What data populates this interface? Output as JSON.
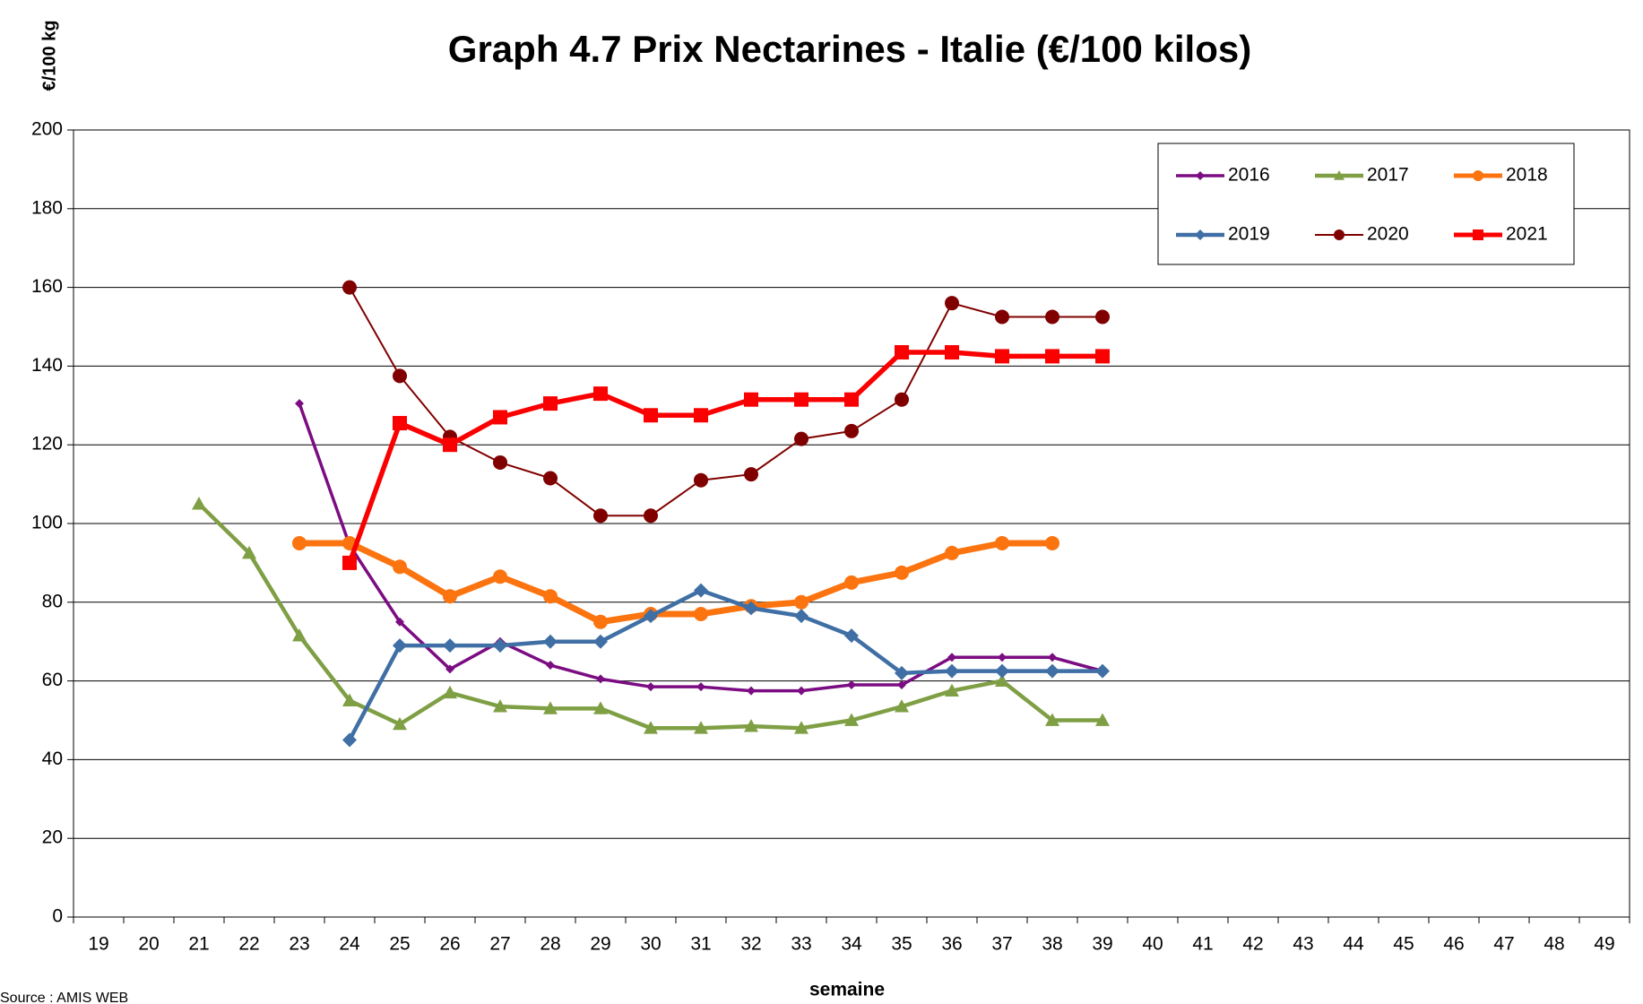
{
  "chart_data": {
    "type": "line",
    "title": "Graph 4.7 Prix Nectarines - Italie (€/100 kilos)",
    "ylabel": "€/100 kg",
    "xlabel": "semaine",
    "source": "Source : AMIS WEB",
    "categories": [
      "19",
      "20",
      "21",
      "22",
      "23",
      "24",
      "25",
      "26",
      "27",
      "28",
      "29",
      "30",
      "31",
      "32",
      "33",
      "34",
      "35",
      "36",
      "37",
      "38",
      "39",
      "40",
      "41",
      "42",
      "43",
      "44",
      "45",
      "46",
      "47",
      "48",
      "49"
    ],
    "ylim": [
      0,
      200
    ],
    "yticks": [
      0,
      20,
      40,
      60,
      80,
      100,
      120,
      140,
      160,
      180,
      200
    ],
    "grid": true,
    "legend": "upper right",
    "series": [
      {
        "name": "2016",
        "color": "#7b0c82",
        "marker": "diamond",
        "width": 3.5,
        "size": 5,
        "values": [
          null,
          null,
          null,
          null,
          130.5,
          94.5,
          75,
          63,
          70,
          64,
          60.5,
          58.5,
          58.5,
          57.5,
          57.5,
          59,
          59,
          66,
          66,
          66,
          62.5,
          null,
          null,
          null,
          null,
          null,
          null,
          null,
          null,
          null,
          null
        ]
      },
      {
        "name": "2017",
        "color": "#7f9f45",
        "marker": "triangle",
        "width": 4.5,
        "size": 8,
        "values": [
          null,
          null,
          105,
          92.5,
          71.5,
          55,
          49,
          57,
          53.5,
          53,
          53,
          48,
          48,
          48.5,
          48,
          50,
          53.5,
          57.5,
          60,
          50,
          50,
          null,
          null,
          null,
          null,
          null,
          null,
          null,
          null,
          null,
          null
        ]
      },
      {
        "name": "2018",
        "color": "#fb7410",
        "marker": "circle",
        "width": 7,
        "size": 8,
        "values": [
          null,
          null,
          null,
          null,
          95,
          95,
          89,
          81.5,
          86.5,
          81.5,
          75,
          77,
          77,
          79,
          80,
          85,
          87.5,
          92.5,
          95,
          95,
          null,
          null,
          null,
          null,
          null,
          null,
          null,
          null,
          null,
          null,
          null
        ]
      },
      {
        "name": "2019",
        "color": "#3f6fa4",
        "marker": "diamond",
        "width": 4.5,
        "size": 8,
        "values": [
          null,
          null,
          null,
          null,
          null,
          45,
          69,
          69,
          69,
          70,
          70,
          76.5,
          83,
          78.5,
          76.5,
          71.5,
          62,
          62.5,
          62.5,
          62.5,
          62.5,
          null,
          null,
          null,
          null,
          null,
          null,
          null,
          null,
          null,
          null
        ]
      },
      {
        "name": "2020",
        "color": "#800000",
        "marker": "circle",
        "width": 2,
        "size": 8,
        "values": [
          null,
          null,
          null,
          null,
          null,
          160,
          137.5,
          122,
          115.5,
          111.5,
          102,
          102,
          111,
          112.5,
          121.5,
          123.5,
          131.5,
          156,
          152.5,
          152.5,
          152.5,
          null,
          null,
          null,
          null,
          null,
          null,
          null,
          null,
          null,
          null
        ]
      },
      {
        "name": "2021",
        "color": "#fa0000",
        "marker": "square",
        "width": 5.5,
        "size": 8,
        "values": [
          null,
          null,
          null,
          null,
          null,
          90,
          125.5,
          120,
          127,
          130.5,
          133,
          127.5,
          127.5,
          131.5,
          131.5,
          131.5,
          143.5,
          143.5,
          142.5,
          142.5,
          142.5,
          null,
          null,
          null,
          null,
          null,
          null,
          null,
          null,
          null,
          null
        ]
      }
    ]
  }
}
